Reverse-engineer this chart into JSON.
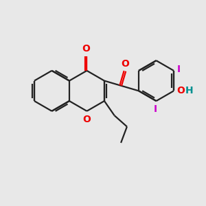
{
  "background_color": "#e8e8e8",
  "bond_color": "#222222",
  "oxygen_color": "#ee0000",
  "iodine_color": "#cc00cc",
  "teal_color": "#009090",
  "bond_lw": 1.6,
  "figsize": [
    3.0,
    3.0
  ],
  "dpi": 100,
  "xlim": [
    -4.2,
    5.8
  ],
  "ylim": [
    -3.5,
    3.5
  ],
  "ring_r": 1.0
}
